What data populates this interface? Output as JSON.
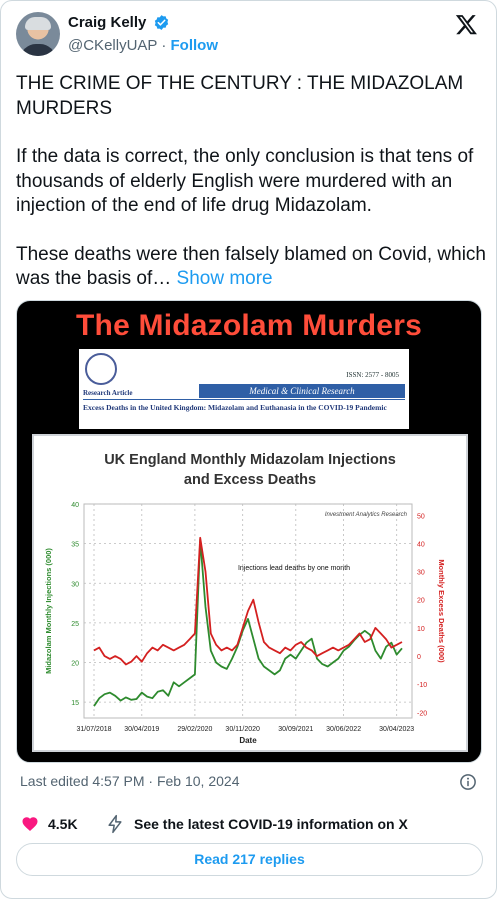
{
  "author": {
    "name": "Craig Kelly",
    "handle": "@CKellyUAP",
    "separator": "·",
    "follow_label": "Follow"
  },
  "tweet": {
    "paragraphs": [
      "THE CRIME OF THE CENTURY : THE MIDAZOLAM MURDERS",
      "If the data is correct, the only conclusion is that tens of thousands of elderly English were murdered with an injection of the end of life drug Midazolam.",
      "These deaths were then falsely blamed on Covid, which was the basis of…"
    ],
    "show_more_label": "Show more"
  },
  "media": {
    "headline": "The Midazolam Murders",
    "paper": {
      "issn": "ISSN: 2577 - 8005",
      "article_type": "Research Article",
      "journal": "Medical & Clinical Research",
      "title": "Excess Deaths in the United Kingdom: Midazolam and Euthanasia in the COVID-19 Pandemic"
    }
  },
  "chart_data": {
    "type": "line",
    "title": "UK England Monthly Midazolam Injections and Excess Deaths",
    "title_lines": [
      "UK England Monthly Midazolam Injections",
      "and Excess Deaths"
    ],
    "source_note": "Investment Analytics Research",
    "annotation": "Injections lead deaths by one month",
    "xlabel": "Date",
    "ylabel_left": "Midazolam Monthly Injections (000)",
    "ylabel_right": "Monthly Excess Deaths (000)",
    "x_ticks": [
      "31/07/2018",
      "30/04/2019",
      "29/02/2020",
      "30/11/2020",
      "30/09/2021",
      "30/06/2022",
      "30/04/2023"
    ],
    "y_left_ticks": [
      15,
      20,
      25,
      30,
      35,
      40
    ],
    "y_right_ticks": [
      -20,
      -10,
      0,
      10,
      20,
      30,
      40,
      50
    ],
    "ylim_left": [
      13,
      40
    ],
    "ylim_right": [
      -22,
      54
    ],
    "grid": true,
    "colors": {
      "injections": "#2e8b2e",
      "deaths": "#d42020",
      "title": "#333333"
    },
    "x_months": [
      "2018-07",
      "2018-08",
      "2018-09",
      "2018-10",
      "2018-11",
      "2018-12",
      "2019-01",
      "2019-02",
      "2019-03",
      "2019-04",
      "2019-05",
      "2019-06",
      "2019-07",
      "2019-08",
      "2019-09",
      "2019-10",
      "2019-11",
      "2019-12",
      "2020-01",
      "2020-02",
      "2020-03",
      "2020-04",
      "2020-05",
      "2020-06",
      "2020-07",
      "2020-08",
      "2020-09",
      "2020-10",
      "2020-11",
      "2020-12",
      "2021-01",
      "2021-02",
      "2021-03",
      "2021-04",
      "2021-05",
      "2021-06",
      "2021-07",
      "2021-08",
      "2021-09",
      "2021-10",
      "2021-11",
      "2021-12",
      "2022-01",
      "2022-02",
      "2022-03",
      "2022-04",
      "2022-05",
      "2022-06",
      "2022-07",
      "2022-08",
      "2022-09",
      "2022-10",
      "2022-11",
      "2022-12",
      "2023-01",
      "2023-02",
      "2023-03",
      "2023-04",
      "2023-05"
    ],
    "series": [
      {
        "name": "Midazolam Monthly Injections (000)",
        "axis": "left",
        "values": [
          14.5,
          15.5,
          16,
          16.2,
          15.8,
          15.2,
          15.6,
          15.3,
          15.4,
          16.2,
          15.7,
          15.5,
          16.3,
          16.5,
          15.8,
          17.5,
          17,
          17.5,
          18,
          18.5,
          35.5,
          27,
          21.5,
          20,
          19.5,
          19.2,
          20.5,
          22,
          24,
          25.5,
          23,
          20.5,
          19.5,
          19,
          18.5,
          19,
          20.5,
          21,
          20.5,
          21.5,
          22.5,
          23,
          20.5,
          19.8,
          19.5,
          20,
          20.5,
          21.5,
          22,
          22.8,
          23.5,
          24,
          23.5,
          21.5,
          20.5,
          22,
          22.5,
          21,
          21.8
        ]
      },
      {
        "name": "Monthly Excess Deaths (000)",
        "axis": "right",
        "values": [
          2,
          3,
          0,
          -1,
          0,
          -1,
          -3,
          -2,
          0,
          -2,
          1,
          3,
          2,
          4,
          3,
          2,
          3,
          4,
          6,
          8,
          42,
          30,
          8,
          4,
          2,
          3,
          2,
          4,
          10,
          16,
          20,
          12,
          5,
          3,
          2,
          1,
          3,
          2,
          4,
          5,
          3,
          2,
          0,
          1,
          2,
          3,
          2,
          3,
          4,
          6,
          8,
          5,
          6,
          10,
          8,
          6,
          3,
          4,
          5
        ]
      }
    ]
  },
  "footer": {
    "edited_label": "Last edited 4:57 PM · Feb 10, 2024",
    "likes": "4.5K",
    "covid_link": "See the latest COVID-19 information on X",
    "read_replies": "Read 217 replies"
  }
}
